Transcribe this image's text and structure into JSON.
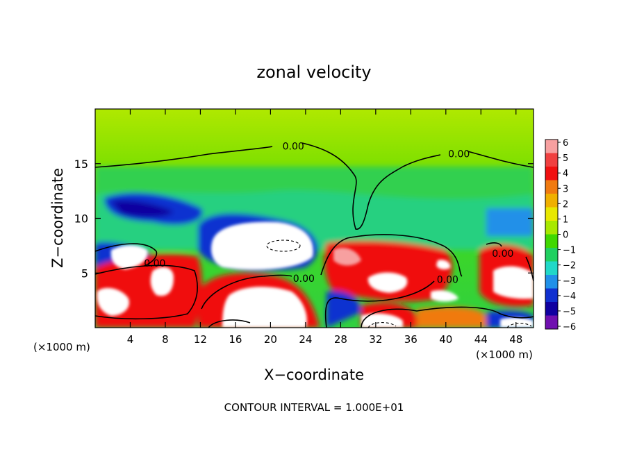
{
  "chart_data": {
    "type": "heatmap",
    "title": "zonal velocity",
    "xlabel": "X−coordinate",
    "ylabel": "Z−coordinate",
    "x_unit_left": "(×1000 m)",
    "x_unit_right": "(×1000 m)",
    "xlim": [
      0,
      50
    ],
    "ylim": [
      0,
      20
    ],
    "x_ticks": [
      4,
      8,
      12,
      16,
      20,
      24,
      28,
      32,
      36,
      40,
      44,
      48
    ],
    "y_ticks": [
      5,
      10,
      15
    ],
    "colorbar": {
      "levels": [
        6,
        5,
        4,
        3,
        2,
        1,
        0,
        -1,
        -2,
        -3,
        -4,
        -5,
        -6
      ],
      "colors": [
        "#f7a0a0",
        "#f04040",
        "#f01010",
        "#f07a10",
        "#f0b000",
        "#e8e800",
        "#a8e800",
        "#40d800",
        "#20d060",
        "#20d8c8",
        "#2090e8",
        "#1030d0",
        "#1000a0",
        "#7010b0"
      ]
    },
    "contour_labels": [
      {
        "text": "0.00",
        "x": 22.6,
        "z": 16.6
      },
      {
        "text": "0.00",
        "x": 41.5,
        "z": 15.9
      },
      {
        "text": "0.00",
        "x": 6.8,
        "z": 5.9
      },
      {
        "text": "0.00",
        "x": 23.8,
        "z": 4.5
      },
      {
        "text": "0.00",
        "x": 40.2,
        "z": 4.4
      },
      {
        "text": "0.00",
        "x": 46.5,
        "z": 6.8
      }
    ],
    "contour_interval": "CONTOUR INTERVAL = 1.000E+01",
    "grid": false,
    "legend": "right"
  }
}
